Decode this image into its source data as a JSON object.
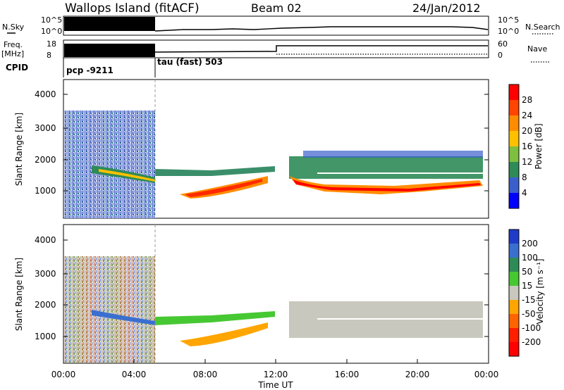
{
  "header": {
    "station": "Wallops Island (fitACF)",
    "beam": "Beam 02",
    "date": "24/Jan/2012"
  },
  "strips": {
    "nsky_label": "N.Sky",
    "nsky_ticks": [
      "10^5",
      "10^0"
    ],
    "nsearch_label": "N.Search",
    "nsearch_ticks": [
      "10^5",
      "10^0"
    ],
    "freq_label": "Freq.",
    "freq_unit": "[MHz]",
    "freq_ticks": [
      "18",
      "8"
    ],
    "nave_label": "Nave",
    "nave_ticks": [
      "60",
      "0"
    ],
    "cpid_label": "CPID",
    "cpid_modes": [
      "pcp -9211",
      "tau (fast) 503"
    ],
    "cpid_change_hour": 5.2
  },
  "power_colorbar": {
    "label": "Power [dB]",
    "ticks": [
      "28",
      "24",
      "20",
      "16",
      "12",
      "8",
      "4"
    ],
    "colors": [
      "#ff0000",
      "#ff4500",
      "#ff8c00",
      "#ffc000",
      "#7fbf3f",
      "#2e8b57",
      "#3a5fcd",
      "#0000ff"
    ]
  },
  "velocity_colorbar": {
    "label": "Velocity [m s⁻¹]",
    "ticks": [
      "200",
      "100",
      "50",
      "15",
      "-15",
      "-50",
      "-100",
      "-200"
    ],
    "colors": [
      "#1e3cc8",
      "#3a6fd0",
      "#2e8b57",
      "#46c832",
      "#c8c8be",
      "#ffa500",
      "#ff6400",
      "#ff1e00",
      "#ff0000"
    ]
  },
  "chart_data": {
    "type": "heatmap",
    "panels": [
      "power",
      "velocity"
    ],
    "ylabel": "Slant Range [km]",
    "yticks": [
      "4000",
      "3000",
      "2000",
      "1000"
    ],
    "ylim": [
      180,
      4500
    ],
    "xlabel": "Time UT",
    "xticks": [
      "00:00",
      "04:00",
      "08:00",
      "12:00",
      "16:00",
      "20:00",
      "00:00"
    ],
    "xlim": [
      0,
      24
    ],
    "scatter_regions": [
      {
        "t0": 0.0,
        "t1": 5.2,
        "r0": 180,
        "r1": 3550,
        "note": "pcp noisy scatter"
      }
    ],
    "echo_bands": [
      {
        "t0": 1.5,
        "t1": 5.2,
        "r0": 1750,
        "r1": 1400,
        "power": "medium",
        "velocity": "positive"
      },
      {
        "t0": 5.2,
        "t1": 10.5,
        "r0": 1500,
        "r1": 1600,
        "power": "low",
        "velocity": "positive"
      },
      {
        "t0": 6.2,
        "t1": 10.5,
        "r0": 1000,
        "r1": 1380,
        "power": "high",
        "velocity": "negative"
      },
      {
        "t0": 12.7,
        "t1": 22.5,
        "r0": 1180,
        "r1": 1180,
        "power": "high",
        "velocity": "near zero"
      },
      {
        "t0": 12.7,
        "t1": 22.5,
        "r0": 1650,
        "r1": 1650,
        "power": "medium",
        "velocity": "near zero"
      }
    ]
  }
}
